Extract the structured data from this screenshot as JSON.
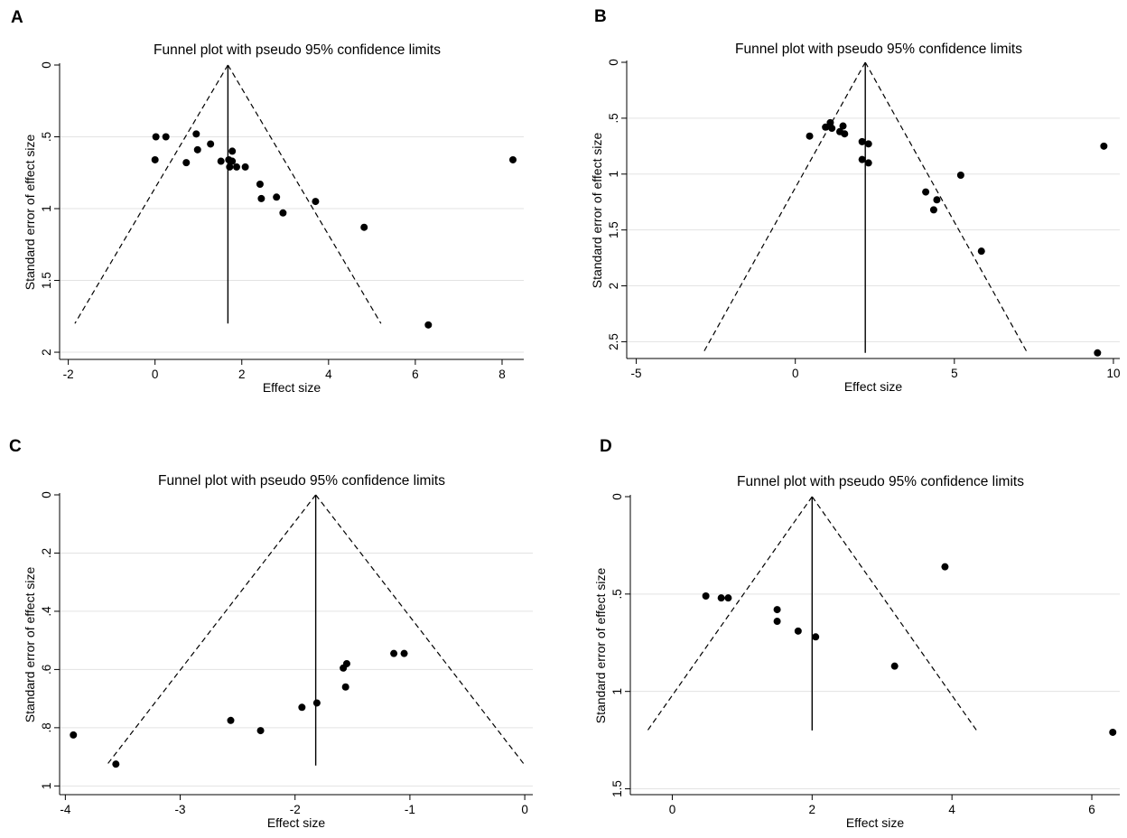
{
  "chart_data": [
    {
      "panel": "A",
      "type": "scatter",
      "title": "Funnel plot with pseudo 95% confidence limits",
      "xlabel": "Effect size",
      "ylabel": "Standard error of effect size",
      "xlim": [
        -2.2,
        8.5
      ],
      "ylim": [
        0,
        2.05
      ],
      "y_reversed": true,
      "xticks": [
        -2,
        0,
        2,
        4,
        6,
        8
      ],
      "xtick_labels": [
        "-2",
        "0",
        "2",
        "4",
        "6",
        "8"
      ],
      "yticks": [
        0,
        0.5,
        1,
        1.5,
        2
      ],
      "ytick_labels": [
        "0",
        ".5",
        "1",
        "1.5",
        "2"
      ],
      "grid": true,
      "pooled_effect": 1.68,
      "ci_max_se": 1.8,
      "points": [
        {
          "x": 0.02,
          "y": 0.5
        },
        {
          "x": 0.25,
          "y": 0.5
        },
        {
          "x": 0.0,
          "y": 0.66
        },
        {
          "x": 0.72,
          "y": 0.68
        },
        {
          "x": 0.95,
          "y": 0.48
        },
        {
          "x": 0.98,
          "y": 0.59
        },
        {
          "x": 1.28,
          "y": 0.55
        },
        {
          "x": 1.52,
          "y": 0.67
        },
        {
          "x": 1.7,
          "y": 0.66
        },
        {
          "x": 1.78,
          "y": 0.6
        },
        {
          "x": 1.78,
          "y": 0.67
        },
        {
          "x": 1.72,
          "y": 0.71
        },
        {
          "x": 1.88,
          "y": 0.71
        },
        {
          "x": 2.08,
          "y": 0.71
        },
        {
          "x": 2.42,
          "y": 0.83
        },
        {
          "x": 2.45,
          "y": 0.93
        },
        {
          "x": 2.8,
          "y": 0.92
        },
        {
          "x": 2.95,
          "y": 1.03
        },
        {
          "x": 3.7,
          "y": 0.95
        },
        {
          "x": 4.82,
          "y": 1.13
        },
        {
          "x": 6.3,
          "y": 1.81
        },
        {
          "x": 8.25,
          "y": 0.66
        }
      ]
    },
    {
      "panel": "B",
      "type": "scatter",
      "title": "Funnel plot with pseudo 95% confidence limits",
      "xlabel": "Effect size",
      "ylabel": "Standard error of effect size",
      "xlim": [
        -5.3,
        10.2
      ],
      "ylim": [
        0,
        2.65
      ],
      "y_reversed": true,
      "xticks": [
        -5,
        0,
        5,
        10
      ],
      "xtick_labels": [
        "-5",
        "0",
        "5",
        "10"
      ],
      "yticks": [
        0,
        0.5,
        1,
        1.5,
        2,
        2.5
      ],
      "ytick_labels": [
        "0",
        ".5",
        "1",
        "1.5",
        "2",
        "2.5"
      ],
      "grid": true,
      "pooled_effect": 2.2,
      "ci_max_se": 2.6,
      "points": [
        {
          "x": 0.45,
          "y": 0.66
        },
        {
          "x": 0.95,
          "y": 0.58
        },
        {
          "x": 1.1,
          "y": 0.54
        },
        {
          "x": 1.15,
          "y": 0.59
        },
        {
          "x": 1.4,
          "y": 0.62
        },
        {
          "x": 1.5,
          "y": 0.57
        },
        {
          "x": 1.55,
          "y": 0.64
        },
        {
          "x": 2.1,
          "y": 0.71
        },
        {
          "x": 2.3,
          "y": 0.73
        },
        {
          "x": 2.1,
          "y": 0.87
        },
        {
          "x": 2.3,
          "y": 0.9
        },
        {
          "x": 4.1,
          "y": 1.16
        },
        {
          "x": 4.35,
          "y": 1.32
        },
        {
          "x": 4.45,
          "y": 1.23
        },
        {
          "x": 5.2,
          "y": 1.01
        },
        {
          "x": 5.85,
          "y": 1.69
        },
        {
          "x": 9.5,
          "y": 2.6
        },
        {
          "x": 9.7,
          "y": 0.75
        }
      ]
    },
    {
      "panel": "C",
      "type": "scatter",
      "title": "Funnel plot with pseudo 95% confidence limits",
      "xlabel": "Effect size",
      "ylabel": "Standard error of effect size",
      "xlim": [
        -4.05,
        0.07
      ],
      "ylim": [
        0,
        1.03
      ],
      "y_reversed": true,
      "xticks": [
        -4,
        -3,
        -2,
        -1,
        0
      ],
      "xtick_labels": [
        "-4",
        "-3",
        "-2",
        "-1",
        "0"
      ],
      "yticks": [
        0,
        0.2,
        0.4,
        0.6,
        0.8,
        1
      ],
      "ytick_labels": [
        "0",
        ".2",
        ".4",
        ".6",
        ".8",
        "1"
      ],
      "grid": true,
      "pooled_effect": -1.82,
      "ci_max_se": 0.93,
      "points": [
        {
          "x": -3.93,
          "y": 0.825
        },
        {
          "x": -3.56,
          "y": 0.925
        },
        {
          "x": -2.56,
          "y": 0.775
        },
        {
          "x": -2.3,
          "y": 0.81
        },
        {
          "x": -1.94,
          "y": 0.73
        },
        {
          "x": -1.81,
          "y": 0.715
        },
        {
          "x": -1.58,
          "y": 0.595
        },
        {
          "x": -1.55,
          "y": 0.58
        },
        {
          "x": -1.56,
          "y": 0.66
        },
        {
          "x": -1.14,
          "y": 0.545
        },
        {
          "x": -1.05,
          "y": 0.545
        }
      ]
    },
    {
      "panel": "D",
      "type": "scatter",
      "title": "Funnel plot with pseudo 95% confidence limits",
      "xlabel": "Effect size",
      "ylabel": "Standard error of effect size",
      "xlim": [
        -0.6,
        6.4
      ],
      "ylim": [
        0,
        1.53
      ],
      "y_reversed": true,
      "xticks": [
        0,
        2,
        4,
        6
      ],
      "xtick_labels": [
        "0",
        "2",
        "4",
        "6"
      ],
      "yticks": [
        0,
        0.5,
        1,
        1.5
      ],
      "ytick_labels": [
        "0",
        ".5",
        "1",
        "1.5"
      ],
      "grid": true,
      "pooled_effect": 2.0,
      "ci_max_se": 1.2,
      "points": [
        {
          "x": 0.48,
          "y": 0.51
        },
        {
          "x": 0.7,
          "y": 0.52
        },
        {
          "x": 0.8,
          "y": 0.52
        },
        {
          "x": 1.5,
          "y": 0.58
        },
        {
          "x": 1.5,
          "y": 0.64
        },
        {
          "x": 1.8,
          "y": 0.69
        },
        {
          "x": 2.05,
          "y": 0.72
        },
        {
          "x": 3.18,
          "y": 0.87
        },
        {
          "x": 3.9,
          "y": 0.36
        },
        {
          "x": 6.3,
          "y": 1.21
        }
      ]
    }
  ]
}
